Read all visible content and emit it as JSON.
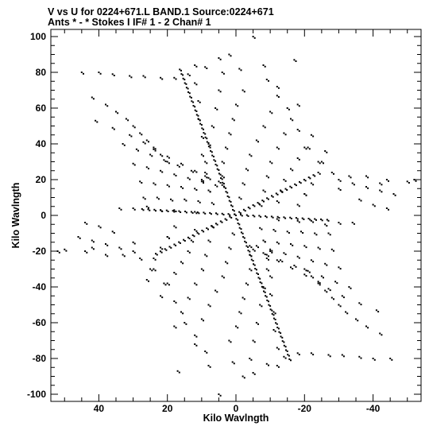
{
  "header": {
    "line1": "V vs U for 0224+671.L BAND.1   Source:0224+671",
    "line2": "Ants * - *     Stokes I   IF# 1 - 2   Chan# 1"
  },
  "chart_data": {
    "type": "scatter",
    "title": "V vs U for 0224+671.L BAND.1   Source:0224+671",
    "subtitle": "Ants * - *     Stokes I   IF# 1 - 2   Chan# 1",
    "xlabel": "Kilo Wavlngth",
    "ylabel": "Kilo Wavlngth",
    "xlim": [
      54,
      -54
    ],
    "ylim": [
      -104,
      104
    ],
    "x_reversed": true,
    "x_ticks": [
      40,
      20,
      0,
      -20,
      -40
    ],
    "x_tick_labels": [
      "40",
      "20",
      "0",
      "-20",
      "-40"
    ],
    "y_ticks": [
      100,
      80,
      60,
      40,
      20,
      0,
      -20,
      -40,
      -60,
      -80,
      -100
    ],
    "y_tick_labels": [
      "100",
      "80",
      "60",
      "40",
      "20",
      "0",
      "-20",
      "-40",
      "-60",
      "-80",
      "-100"
    ],
    "grid": false,
    "marker": "dot",
    "color": "#000000",
    "tracks": [
      {
        "name": "arm-steep",
        "from": [
          -16,
          -81
        ],
        "to": [
          16,
          81
        ],
        "dense": 64
      },
      {
        "name": "arm-east-west",
        "from": [
          -23,
          22
        ],
        "to": [
          23,
          -22
        ],
        "dense": 34
      },
      {
        "name": "arm-shallow",
        "from": [
          -27,
          -3
        ],
        "to": [
          27,
          3
        ],
        "dense": 30
      }
    ],
    "fan_points": [
      [
        45,
        80
      ],
      [
        40,
        80
      ],
      [
        36,
        79
      ],
      [
        31,
        78
      ],
      [
        27,
        78
      ],
      [
        22,
        77
      ],
      [
        18,
        77
      ],
      [
        14,
        79
      ],
      [
        9,
        83
      ],
      [
        5,
        88
      ],
      [
        -5,
        100
      ],
      [
        -8,
        84
      ],
      [
        -12,
        72
      ],
      [
        -15,
        60
      ],
      [
        -18,
        48
      ],
      [
        -21,
        38
      ],
      [
        -24,
        30
      ],
      [
        -28,
        24
      ],
      [
        -33,
        22
      ],
      [
        -38,
        22
      ],
      [
        -44,
        20
      ],
      [
        -50,
        19
      ],
      [
        -42,
        18
      ],
      [
        -30,
        15
      ],
      [
        -20,
        12
      ],
      [
        42,
        66
      ],
      [
        38,
        62
      ],
      [
        35,
        58
      ],
      [
        32,
        54
      ],
      [
        30,
        50
      ],
      [
        28,
        46
      ],
      [
        26,
        42
      ],
      [
        24,
        38
      ],
      [
        22,
        34
      ],
      [
        20,
        30
      ],
      [
        41,
        53
      ],
      [
        36,
        49
      ],
      [
        31,
        45
      ],
      [
        27,
        41
      ],
      [
        24,
        37
      ],
      [
        20,
        33
      ],
      [
        16,
        29
      ],
      [
        12,
        25
      ],
      [
        8,
        21
      ],
      [
        4,
        17
      ],
      [
        33,
        40
      ],
      [
        29,
        37
      ],
      [
        25,
        34
      ],
      [
        21,
        31
      ],
      [
        17,
        28
      ],
      [
        13,
        25
      ],
      [
        9,
        22
      ],
      [
        5,
        19
      ],
      [
        30,
        29
      ],
      [
        26,
        27
      ],
      [
        22,
        25
      ],
      [
        18,
        23
      ],
      [
        14,
        21
      ],
      [
        10,
        19
      ],
      [
        6,
        17
      ],
      [
        28,
        19
      ],
      [
        24,
        18
      ],
      [
        20,
        17
      ],
      [
        16,
        16
      ],
      [
        12,
        15
      ],
      [
        8,
        14
      ],
      [
        27,
        10
      ],
      [
        23,
        10
      ],
      [
        19,
        9
      ],
      [
        15,
        9
      ],
      [
        11,
        8
      ],
      [
        7,
        7
      ],
      [
        34,
        4
      ],
      [
        30,
        4
      ],
      [
        22,
        3
      ],
      [
        18,
        3
      ],
      [
        12,
        2
      ],
      [
        -9,
        76
      ],
      [
        -12,
        67
      ],
      [
        -10,
        58
      ],
      [
        -8,
        50
      ],
      [
        -6,
        42
      ],
      [
        -4,
        34
      ],
      [
        -3,
        26
      ],
      [
        -2,
        18
      ],
      [
        -1,
        10
      ],
      [
        -18,
        62
      ],
      [
        -16,
        54
      ],
      [
        -14,
        46
      ],
      [
        -12,
        38
      ],
      [
        -10,
        30
      ],
      [
        -9,
        22
      ],
      [
        -8,
        14
      ],
      [
        -7,
        6
      ],
      [
        -22,
        45
      ],
      [
        -20,
        38
      ],
      [
        -18,
        32
      ],
      [
        -16,
        26
      ],
      [
        -14,
        20
      ],
      [
        -13,
        14
      ],
      [
        -12,
        8
      ],
      [
        -26,
        36
      ],
      [
        -25,
        30
      ],
      [
        -24,
        24
      ],
      [
        -22,
        18
      ],
      [
        -20,
        12
      ],
      [
        -18,
        6
      ],
      [
        -30,
        20
      ],
      [
        -34,
        18
      ],
      [
        -38,
        16
      ],
      [
        -42,
        14
      ],
      [
        -46,
        12
      ],
      [
        -40,
        6
      ],
      [
        -44,
        4
      ],
      [
        -36,
        9
      ],
      [
        2,
        90
      ],
      [
        4,
        80
      ],
      [
        5,
        70
      ],
      [
        6,
        60
      ],
      [
        7,
        50
      ],
      [
        8,
        40
      ],
      [
        9,
        30
      ],
      [
        10,
        20
      ],
      [
        12,
        84
      ],
      [
        12,
        74
      ],
      [
        11,
        64
      ],
      [
        11,
        54
      ],
      [
        10,
        44
      ],
      [
        10,
        34
      ],
      [
        9,
        24
      ],
      [
        8,
        14
      ],
      [
        -2,
        70
      ],
      [
        0,
        62
      ],
      [
        1,
        54
      ],
      [
        2,
        46
      ],
      [
        3,
        38
      ],
      [
        4,
        30
      ],
      [
        4,
        22
      ],
      [
        -45,
        -80
      ],
      [
        -40,
        -80
      ],
      [
        -36,
        -79
      ],
      [
        -31,
        -78
      ],
      [
        -27,
        -78
      ],
      [
        -22,
        -77
      ],
      [
        -18,
        -77
      ],
      [
        -14,
        -79
      ],
      [
        -9,
        -83
      ],
      [
        -5,
        -88
      ],
      [
        5,
        -100
      ],
      [
        8,
        -84
      ],
      [
        12,
        -72
      ],
      [
        15,
        -60
      ],
      [
        18,
        -48
      ],
      [
        21,
        -38
      ],
      [
        24,
        -30
      ],
      [
        28,
        -24
      ],
      [
        33,
        -22
      ],
      [
        38,
        -22
      ],
      [
        44,
        -20
      ],
      [
        50,
        -19
      ],
      [
        42,
        -18
      ],
      [
        30,
        -15
      ],
      [
        20,
        -12
      ],
      [
        -42,
        -66
      ],
      [
        -38,
        -62
      ],
      [
        -35,
        -58
      ],
      [
        -32,
        -54
      ],
      [
        -30,
        -50
      ],
      [
        -28,
        -46
      ],
      [
        -26,
        -42
      ],
      [
        -24,
        -38
      ],
      [
        -22,
        -34
      ],
      [
        -20,
        -30
      ],
      [
        -41,
        -53
      ],
      [
        -36,
        -49
      ],
      [
        -31,
        -45
      ],
      [
        -27,
        -41
      ],
      [
        -24,
        -37
      ],
      [
        -20,
        -33
      ],
      [
        -16,
        -29
      ],
      [
        -12,
        -25
      ],
      [
        -8,
        -21
      ],
      [
        -4,
        -17
      ],
      [
        -33,
        -40
      ],
      [
        -29,
        -37
      ],
      [
        -25,
        -34
      ],
      [
        -21,
        -31
      ],
      [
        -17,
        -28
      ],
      [
        -13,
        -25
      ],
      [
        -9,
        -22
      ],
      [
        -5,
        -19
      ],
      [
        -30,
        -29
      ],
      [
        -26,
        -27
      ],
      [
        -22,
        -25
      ],
      [
        -18,
        -23
      ],
      [
        -14,
        -21
      ],
      [
        -10,
        -19
      ],
      [
        -6,
        -17
      ],
      [
        -28,
        -19
      ],
      [
        -24,
        -18
      ],
      [
        -20,
        -17
      ],
      [
        -16,
        -16
      ],
      [
        -12,
        -15
      ],
      [
        -8,
        -14
      ],
      [
        -27,
        -10
      ],
      [
        -23,
        -10
      ],
      [
        -19,
        -9
      ],
      [
        -15,
        -9
      ],
      [
        -11,
        -8
      ],
      [
        -7,
        -7
      ],
      [
        -34,
        -4
      ],
      [
        -30,
        -4
      ],
      [
        -22,
        -3
      ],
      [
        -18,
        -3
      ],
      [
        -12,
        -2
      ],
      [
        9,
        -76
      ],
      [
        12,
        -67
      ],
      [
        10,
        -58
      ],
      [
        8,
        -50
      ],
      [
        6,
        -42
      ],
      [
        4,
        -34
      ],
      [
        3,
        -26
      ],
      [
        2,
        -18
      ],
      [
        1,
        -10
      ],
      [
        18,
        -62
      ],
      [
        16,
        -54
      ],
      [
        14,
        -46
      ],
      [
        12,
        -38
      ],
      [
        10,
        -30
      ],
      [
        9,
        -22
      ],
      [
        8,
        -14
      ],
      [
        7,
        -6
      ],
      [
        22,
        -45
      ],
      [
        20,
        -38
      ],
      [
        18,
        -32
      ],
      [
        16,
        -26
      ],
      [
        14,
        -20
      ],
      [
        13,
        -14
      ],
      [
        12,
        -8
      ],
      [
        26,
        -36
      ],
      [
        25,
        -30
      ],
      [
        24,
        -24
      ],
      [
        22,
        -18
      ],
      [
        20,
        -12
      ],
      [
        18,
        -6
      ],
      [
        30,
        -20
      ],
      [
        34,
        -18
      ],
      [
        38,
        -16
      ],
      [
        42,
        -14
      ],
      [
        46,
        -12
      ],
      [
        40,
        -6
      ],
      [
        44,
        -4
      ],
      [
        36,
        -9
      ],
      [
        -2,
        -90
      ],
      [
        -4,
        -80
      ],
      [
        -5,
        -70
      ],
      [
        -6,
        -60
      ],
      [
        -7,
        -50
      ],
      [
        -8,
        -40
      ],
      [
        -9,
        -30
      ],
      [
        -10,
        -20
      ],
      [
        -12,
        -84
      ],
      [
        -12,
        -74
      ],
      [
        -11,
        -64
      ],
      [
        -11,
        -54
      ],
      [
        -10,
        -44
      ],
      [
        -10,
        -34
      ],
      [
        -9,
        -24
      ],
      [
        -8,
        -14
      ],
      [
        2,
        -70
      ],
      [
        0,
        -62
      ],
      [
        -1,
        -54
      ],
      [
        -2,
        -46
      ],
      [
        -3,
        -38
      ],
      [
        -4,
        -30
      ],
      [
        -4,
        -22
      ],
      [
        52,
        -20
      ],
      [
        -52,
        20
      ],
      [
        17,
        -87
      ],
      [
        -17,
        87
      ],
      [
        1,
        -82
      ],
      [
        -1,
        82
      ],
      [
        26,
        5
      ],
      [
        -26,
        -5
      ]
    ]
  }
}
